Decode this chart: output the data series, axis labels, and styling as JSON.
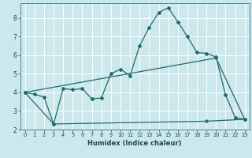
{
  "xlabel": "Humidex (Indice chaleur)",
  "bg_color": "#cce8ec",
  "grid_color": "#ffffff",
  "line_color": "#1e6b6b",
  "xlim": [
    -0.5,
    23.5
  ],
  "ylim": [
    2.0,
    8.8
  ],
  "xticks": [
    0,
    1,
    2,
    3,
    4,
    5,
    6,
    7,
    8,
    9,
    10,
    11,
    12,
    13,
    14,
    15,
    16,
    17,
    18,
    19,
    20,
    21,
    22,
    23
  ],
  "yticks": [
    2,
    3,
    4,
    5,
    6,
    7,
    8
  ],
  "line1_x": [
    0,
    1,
    2,
    3,
    4,
    5,
    6,
    7,
    8,
    9,
    10,
    11,
    12,
    13,
    14,
    15,
    16,
    17,
    18,
    19,
    20,
    21,
    22,
    23
  ],
  "line1_y": [
    4.0,
    3.9,
    3.75,
    2.3,
    4.2,
    4.15,
    4.2,
    3.65,
    3.7,
    5.0,
    5.25,
    4.9,
    6.5,
    7.5,
    8.3,
    8.55,
    7.8,
    7.0,
    6.15,
    6.1,
    5.9,
    3.85,
    2.65,
    2.55
  ],
  "line2_x": [
    0,
    3,
    19,
    23
  ],
  "line2_y": [
    4.0,
    2.3,
    2.45,
    2.55
  ],
  "line3_x": [
    0,
    20,
    23
  ],
  "line3_y": [
    4.0,
    5.85,
    2.55
  ]
}
